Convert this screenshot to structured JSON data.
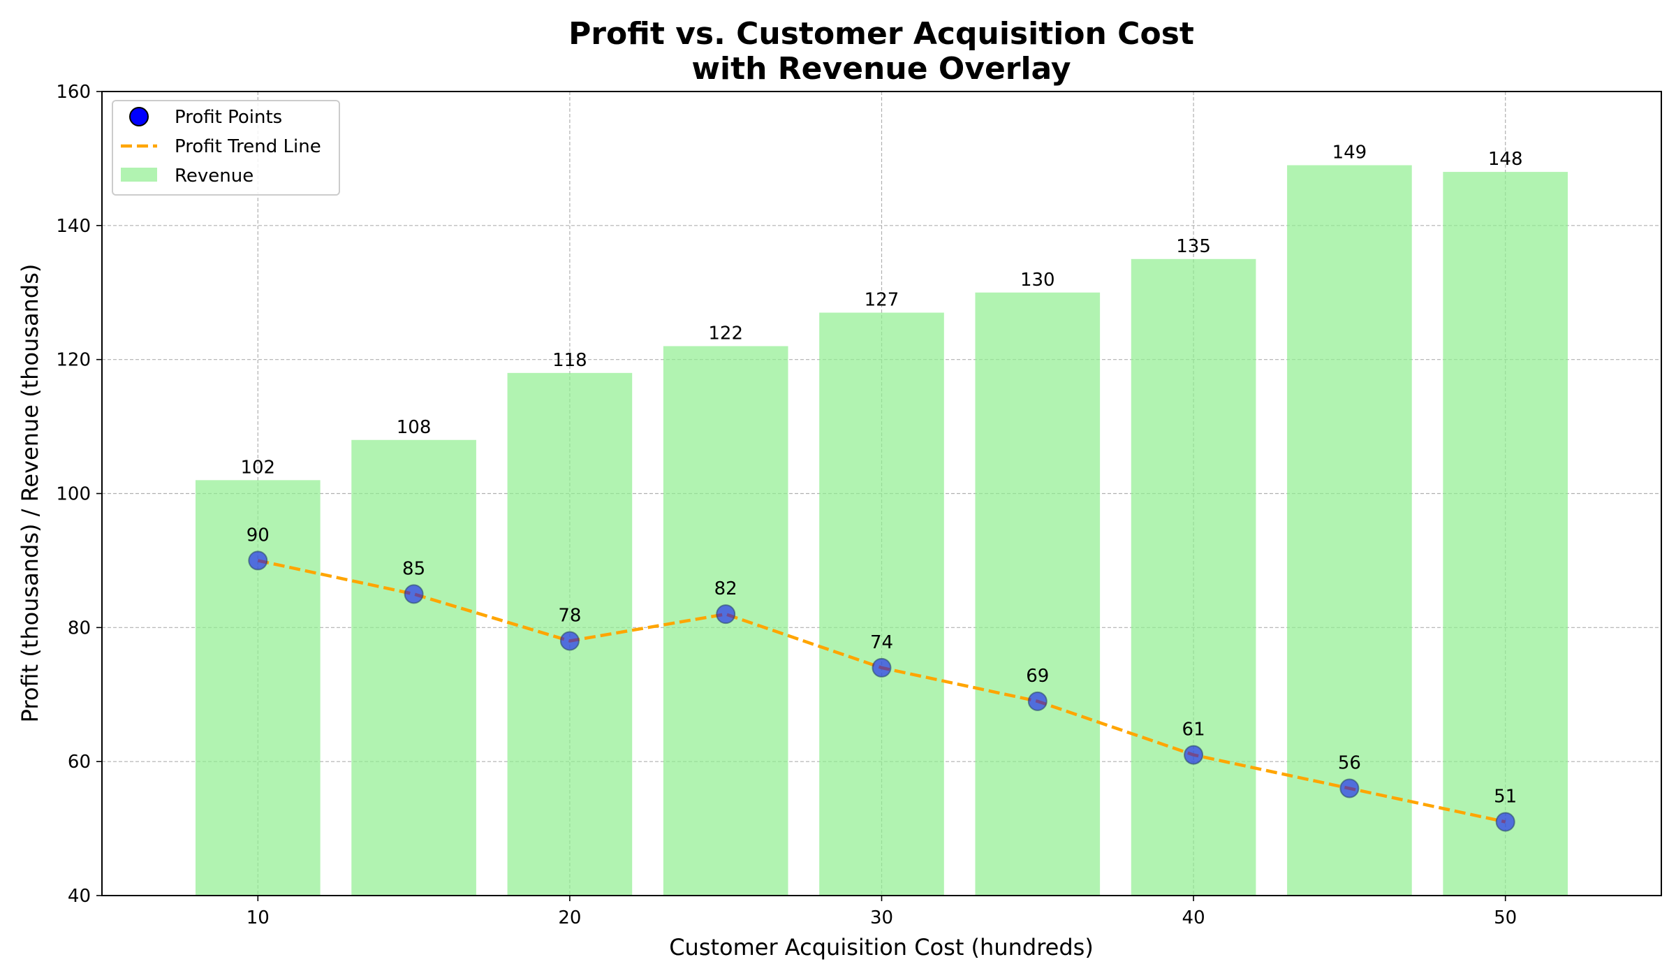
{
  "chart_data": {
    "type": "bar",
    "title_line1": "Profit vs. Customer Acquisition Cost",
    "title_line2": "with Revenue Overlay",
    "xlabel": "Customer Acquisition Cost (hundreds)",
    "ylabel": "Profit (thousands) / Revenue (thousands)",
    "x": [
      10,
      15,
      20,
      25,
      30,
      35,
      40,
      45,
      50
    ],
    "xlim": [
      5,
      55
    ],
    "ylim": [
      40,
      160
    ],
    "xticks": [
      10,
      20,
      30,
      40,
      50
    ],
    "yticks": [
      40,
      60,
      80,
      100,
      120,
      140,
      160
    ],
    "bar_width": 4,
    "grid": true,
    "legend_position": "top-left",
    "series": [
      {
        "name": "Revenue",
        "kind": "bar",
        "color": "#90ee90",
        "values": [
          102,
          108,
          118,
          122,
          127,
          130,
          135,
          149,
          148
        ]
      },
      {
        "name": "Profit Points",
        "kind": "scatter",
        "color": "#0000ff",
        "values": [
          90,
          85,
          78,
          82,
          74,
          69,
          61,
          56,
          51
        ]
      },
      {
        "name": "Profit Trend Line",
        "kind": "line",
        "color": "#ffa500",
        "values": [
          90,
          85,
          78,
          82,
          74,
          69,
          61,
          56,
          51
        ]
      }
    ]
  }
}
